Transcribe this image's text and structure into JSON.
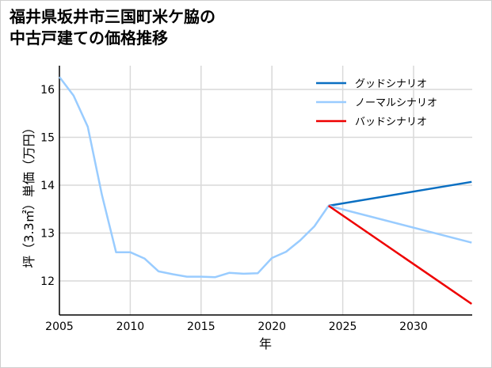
{
  "title_lines": [
    "福井県坂井市三国町米ケ脇の",
    "中古戸建ての価格推移"
  ],
  "chart_data": {
    "type": "line",
    "title": "福井県坂井市三国町米ケ脇の中古戸建ての価格推移",
    "xlabel": "年",
    "ylabel": "坪（3.3㎡）単価（万円）",
    "xlim": [
      2005,
      2034.1
    ],
    "ylim": [
      11.3,
      16.5
    ],
    "xticks": [
      2005,
      2010,
      2015,
      2020,
      2025,
      2030
    ],
    "yticks": [
      12,
      13,
      14,
      15,
      16
    ],
    "grid": true,
    "legend_position": "upper right",
    "series": [
      {
        "name": "ノーマルシナリオ (historical)",
        "color": "#99ccff",
        "x": [
          2005,
          2006,
          2007,
          2008,
          2009,
          2010,
          2011,
          2012,
          2013,
          2014,
          2015,
          2016,
          2017,
          2018,
          2019,
          2020,
          2021,
          2022,
          2023,
          2024
        ],
        "values": [
          16.26,
          15.87,
          15.22,
          13.8,
          12.6,
          12.6,
          12.47,
          12.2,
          12.14,
          12.09,
          12.09,
          12.08,
          12.17,
          12.15,
          12.16,
          12.48,
          12.61,
          12.85,
          13.14,
          13.57
        ]
      },
      {
        "name": "グッドシナリオ",
        "color": "#0a6fc2",
        "x": [
          2024,
          2034.1
        ],
        "values": [
          13.57,
          14.07
        ]
      },
      {
        "name": "ノーマルシナリオ",
        "color": "#99ccff",
        "x": [
          2024,
          2034.1
        ],
        "values": [
          13.57,
          12.8
        ]
      },
      {
        "name": "バッドシナリオ",
        "color": "#ee0000",
        "x": [
          2024,
          2034.1
        ],
        "values": [
          13.57,
          11.52
        ]
      }
    ],
    "legend": [
      "グッドシナリオ",
      "ノーマルシナリオ",
      "バッドシナリオ"
    ]
  }
}
